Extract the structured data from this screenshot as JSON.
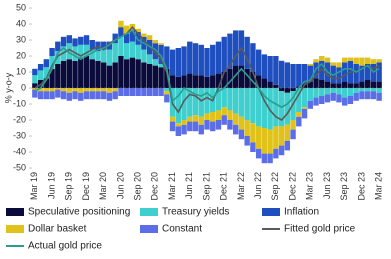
{
  "chart_data": {
    "type": "bar",
    "stacked": true,
    "y_label": "% y-o-y",
    "categories": [
      "Mar 19",
      null,
      null,
      "Jun 19",
      null,
      null,
      "Sep 19",
      null,
      null,
      "Dec 19",
      null,
      null,
      "Mar 20",
      null,
      null,
      "Jun 20",
      null,
      null,
      "Sep 20",
      null,
      null,
      "Dec 20",
      null,
      null,
      "Mar 21",
      null,
      null,
      "Jun 21",
      null,
      null,
      "Sep 21",
      null,
      null,
      "Dec 21",
      null,
      null,
      "Mar 22",
      null,
      null,
      "Jun 22",
      null,
      null,
      "Sep 22",
      null,
      null,
      "Dec 22",
      null,
      null,
      "Mar 23",
      null,
      null,
      "Jun 23",
      null,
      null,
      "Sep 23",
      null,
      null,
      "Dec 23",
      null,
      null,
      "Mar 24"
    ],
    "ylim": [
      -50,
      50
    ],
    "yticks": [
      -50,
      -40,
      -30,
      -20,
      -10,
      0,
      10,
      20,
      30,
      40,
      50
    ],
    "grid": false,
    "series": [
      {
        "name": "Speculative positioning",
        "color": "#0b0b3b",
        "values": [
          3,
          5,
          6,
          12,
          15,
          17,
          18,
          17,
          19,
          20,
          18,
          17,
          16,
          14,
          16,
          20,
          18,
          19,
          18,
          16,
          15,
          14,
          13,
          12,
          8,
          7,
          8,
          9,
          8,
          8,
          7,
          8,
          9,
          10,
          12,
          14,
          14,
          12,
          10,
          8,
          6,
          4,
          2,
          -2,
          -3,
          -2,
          1,
          3,
          4,
          6,
          5,
          4,
          3,
          3,
          4,
          3,
          3,
          4,
          5,
          4,
          4
        ]
      },
      {
        "name": "Treasury yields",
        "color": "#3fcfcf",
        "values": [
          5,
          6,
          7,
          8,
          8,
          9,
          10,
          9,
          8,
          7,
          6,
          6,
          8,
          10,
          12,
          12,
          10,
          10,
          9,
          8,
          6,
          4,
          2,
          -2,
          -18,
          -22,
          -20,
          -18,
          -17,
          -18,
          -16,
          -15,
          -14,
          -12,
          -14,
          -16,
          -18,
          -20,
          -22,
          -24,
          -25,
          -26,
          -24,
          -22,
          -20,
          -18,
          -15,
          -12,
          -8,
          -6,
          -5,
          -4,
          -3,
          -4,
          -6,
          -5,
          -3,
          -2,
          -2,
          -2,
          -3
        ]
      },
      {
        "name": "Inflation",
        "color": "#1f4fbf",
        "values": [
          4,
          4,
          5,
          5,
          6,
          6,
          5,
          5,
          5,
          6,
          6,
          6,
          5,
          5,
          6,
          6,
          6,
          7,
          8,
          8,
          9,
          10,
          12,
          14,
          16,
          18,
          18,
          20,
          20,
          19,
          18,
          19,
          20,
          22,
          22,
          22,
          22,
          20,
          18,
          16,
          15,
          16,
          18,
          17,
          16,
          15,
          14,
          12,
          10,
          10,
          12,
          12,
          11,
          10,
          12,
          14,
          12,
          10,
          10,
          11,
          12
        ]
      },
      {
        "name": "Dollar basket",
        "color": "#e0c21a",
        "values": [
          -1,
          -2,
          -2,
          -2,
          -1,
          -2,
          -3,
          -2,
          -3,
          -2,
          -2,
          -2,
          -2,
          -3,
          -2,
          4,
          5,
          4,
          2,
          2,
          3,
          2,
          1,
          -2,
          -3,
          -2,
          -3,
          -3,
          -4,
          -5,
          -4,
          -6,
          -6,
          -5,
          -6,
          -7,
          -8,
          -10,
          -12,
          -14,
          -16,
          -15,
          -14,
          -12,
          -10,
          -6,
          -3,
          -1,
          1,
          2,
          3,
          3,
          2,
          3,
          3,
          2,
          4,
          5,
          4,
          3,
          2
        ]
      },
      {
        "name": "Constant",
        "color": "#5b6ee8",
        "values": [
          -5,
          -5,
          -5,
          -5,
          -5,
          -5,
          -5,
          -5,
          -5,
          -5,
          -5,
          -5,
          -5,
          -5,
          -5,
          -5,
          -5,
          -5,
          -5,
          -5,
          -5,
          -5,
          -5,
          -5,
          -6,
          -6,
          -6,
          -6,
          -6,
          -6,
          -6,
          -6,
          -6,
          -6,
          -6,
          -6,
          -6,
          -6,
          -6,
          -6,
          -6,
          -6,
          -6,
          -6,
          -6,
          -6,
          -6,
          -6,
          -5,
          -5,
          -5,
          -5,
          -5,
          -5,
          -5,
          -5,
          -5,
          -5,
          -5,
          -5,
          -5
        ]
      },
      {
        "name": "Fitted gold price",
        "type": "line",
        "color": "#5a5a5a",
        "values": [
          0,
          2,
          6,
          14,
          20,
          22,
          24,
          22,
          20,
          22,
          24,
          26,
          24,
          28,
          30,
          32,
          34,
          38,
          34,
          30,
          26,
          22,
          18,
          10,
          -10,
          -15,
          -8,
          -4,
          -5,
          -8,
          -6,
          -8,
          0,
          10,
          14,
          20,
          25,
          18,
          10,
          0,
          -8,
          -14,
          -18,
          -20,
          -16,
          -10,
          -4,
          2,
          4,
          8,
          12,
          8,
          6,
          6,
          8,
          10,
          10,
          12,
          14,
          12,
          14
        ]
      },
      {
        "name": "Actual gold price",
        "type": "line",
        "color": "#2a9d8f",
        "values": [
          -2,
          0,
          5,
          12,
          22,
          25,
          22,
          20,
          18,
          20,
          22,
          24,
          25,
          27,
          30,
          32,
          34,
          36,
          30,
          28,
          26,
          24,
          20,
          12,
          -8,
          -5,
          0,
          -2,
          -4,
          -5,
          -3,
          -6,
          -2,
          0,
          4,
          8,
          12,
          8,
          4,
          0,
          -5,
          -8,
          -10,
          -12,
          -10,
          -6,
          0,
          4,
          5,
          12,
          15,
          10,
          8,
          10,
          12,
          12,
          10,
          12,
          14,
          10,
          12
        ]
      }
    ]
  }
}
